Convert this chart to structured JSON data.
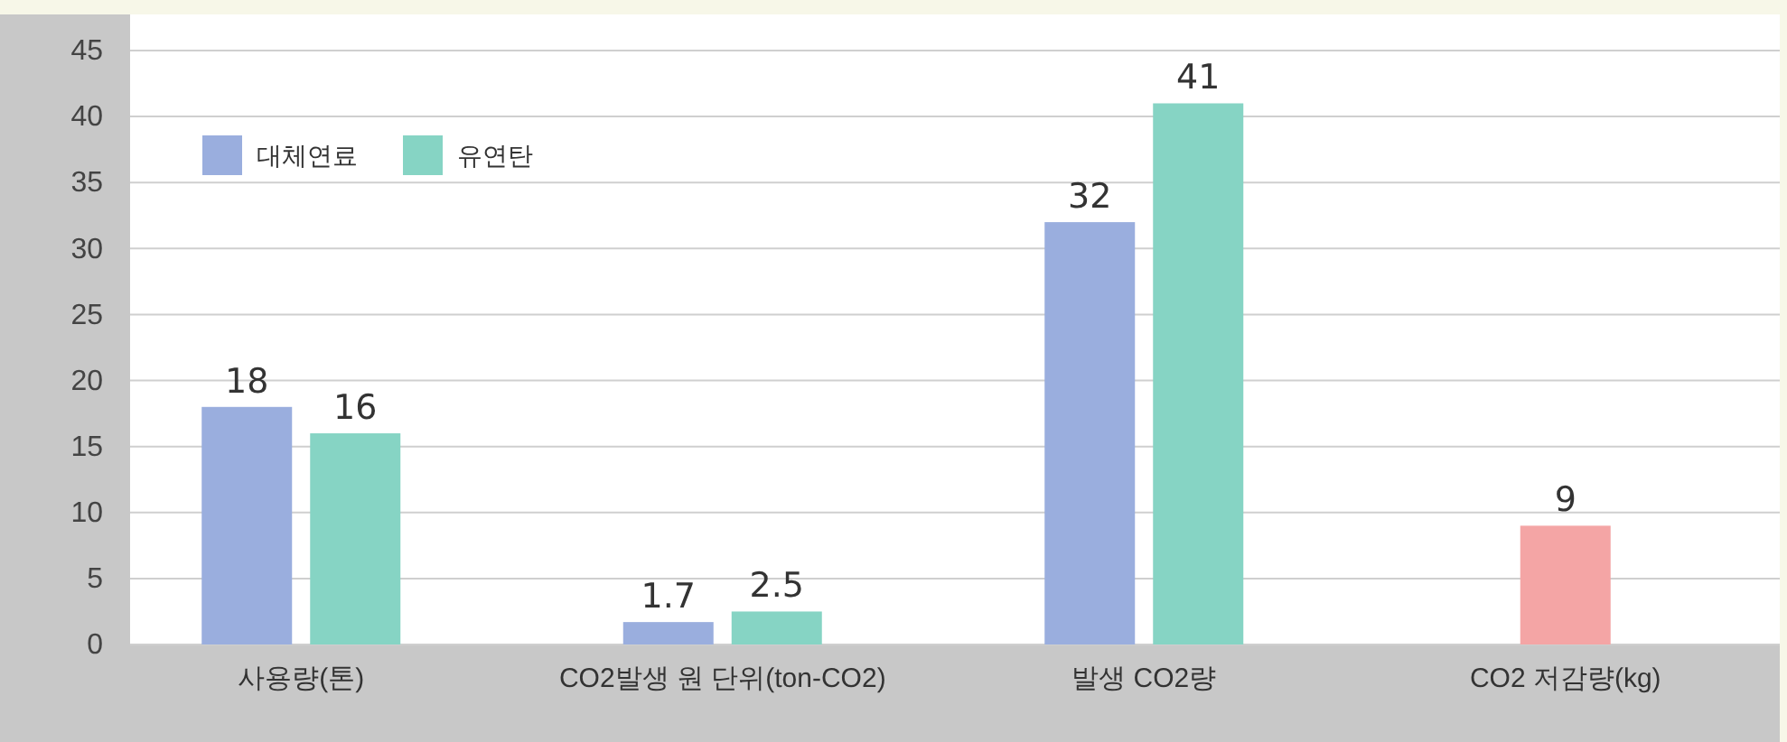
{
  "chart_data": {
    "type": "bar",
    "categories": [
      "사용량(톤)",
      "CO2발생 원 단위(ton-CO2)",
      "발생 CO2량",
      "CO2 저감량(kg)"
    ],
    "series": [
      {
        "name": "대체연료",
        "color": "#9aaede",
        "values": [
          18,
          1.7,
          32,
          null
        ]
      },
      {
        "name": "유연탄",
        "color": "#86d4c4",
        "values": [
          16,
          2.5,
          41,
          null
        ]
      },
      {
        "color": "#f4a5a5",
        "values": [
          null,
          null,
          null,
          9
        ]
      }
    ],
    "ylim": [
      0,
      45
    ],
    "yticks": [
      0,
      5,
      10,
      15,
      20,
      25,
      30,
      35,
      40,
      45
    ],
    "grid": "y",
    "legend": "top left",
    "data_labels": true
  }
}
